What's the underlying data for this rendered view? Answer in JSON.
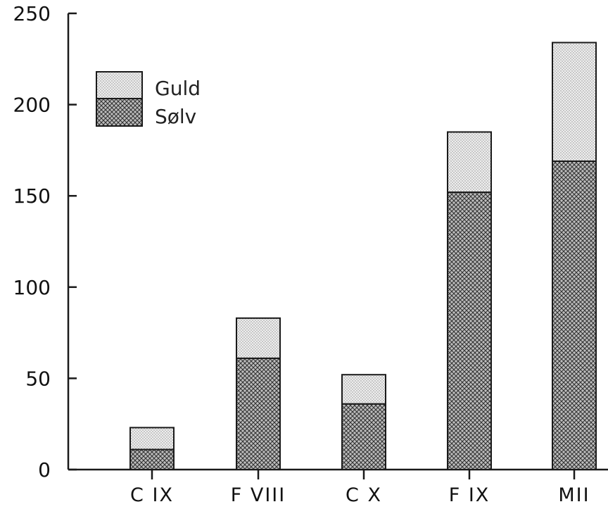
{
  "chart_data": {
    "type": "bar",
    "stacked": true,
    "categories": [
      "C IX",
      "F VIII",
      "C X",
      "F IX",
      "MII"
    ],
    "series": [
      {
        "name": "Sølv",
        "values": [
          11,
          61,
          36,
          152,
          169
        ],
        "color": "#8a8a8a",
        "pattern": "crosshatch-dark"
      },
      {
        "name": "Guld",
        "values": [
          12,
          22,
          16,
          33,
          65
        ],
        "color": "#d8d8d8",
        "pattern": "dots-light"
      }
    ],
    "yticks": [
      "0",
      "50",
      "100",
      "150",
      "200",
      "250"
    ],
    "ylim": [
      0,
      250
    ],
    "title": "",
    "xlabel": "",
    "ylabel": "",
    "grid": false,
    "legend": {
      "position": "top-left",
      "entries": [
        "Guld",
        "Sølv"
      ]
    }
  }
}
